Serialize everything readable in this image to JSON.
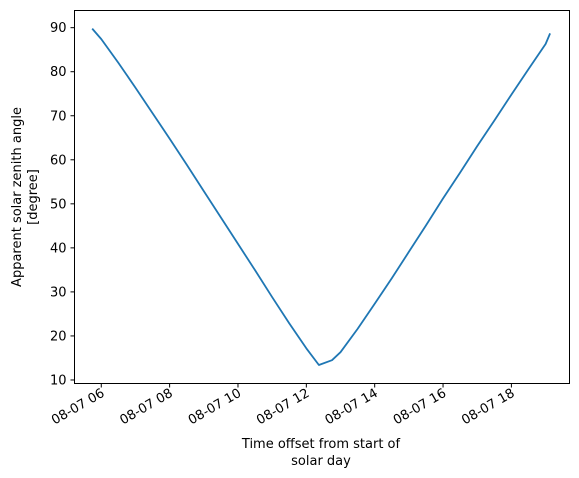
{
  "chart_data": {
    "type": "line",
    "title": "",
    "xlabel": [
      "Time offset from start of",
      "solar day"
    ],
    "ylabel": [
      "Apparent solar zenith angle",
      "[degree]"
    ],
    "x_ticks": [
      "2024-08-07T06:00",
      "2024-08-07T08:00",
      "2024-08-07T10:00",
      "2024-08-07T12:00",
      "2024-08-07T14:00",
      "2024-08-07T16:00",
      "2024-08-07T18:00"
    ],
    "x_tick_labels": [
      "08-07 06",
      "08-07 08",
      "08-07 10",
      "08-07 12",
      "08-07 14",
      "08-07 16",
      "08-07 18"
    ],
    "y_ticks": [
      10,
      20,
      30,
      40,
      50,
      60,
      70,
      80,
      90
    ],
    "y_tick_labels": [
      "10",
      "20",
      "30",
      "40",
      "50",
      "60",
      "70",
      "80",
      "90"
    ],
    "xlim": [
      "2024-08-07T05:13",
      "2024-08-07T19:42"
    ],
    "ylim": [
      9.2,
      93.9
    ],
    "grid": false,
    "line_color": "#1f77b4",
    "series": [
      {
        "x": [
          "2024-08-07T05:44",
          "2024-08-07T06:00",
          "2024-08-07T06:30",
          "2024-08-07T07:00",
          "2024-08-07T07:30",
          "2024-08-07T08:00",
          "2024-08-07T08:30",
          "2024-08-07T09:00",
          "2024-08-07T09:30",
          "2024-08-07T10:00",
          "2024-08-07T10:30",
          "2024-08-07T11:00",
          "2024-08-07T11:30",
          "2024-08-07T12:00",
          "2024-08-07T12:22",
          "2024-08-07T12:45",
          "2024-08-07T13:00",
          "2024-08-07T13:30",
          "2024-08-07T14:00",
          "2024-08-07T14:30",
          "2024-08-07T15:00",
          "2024-08-07T15:30",
          "2024-08-07T16:00",
          "2024-08-07T16:30",
          "2024-08-07T17:00",
          "2024-08-07T17:30",
          "2024-08-07T18:00",
          "2024-08-07T18:30",
          "2024-08-07T19:00",
          "2024-08-07T19:08"
        ],
        "y": [
          89.8,
          87.4,
          82.0,
          76.4,
          70.6,
          64.8,
          58.9,
          52.9,
          46.9,
          40.9,
          34.9,
          28.8,
          22.9,
          17.2,
          13.4,
          14.5,
          16.3,
          21.6,
          27.3,
          33.1,
          39.1,
          45.1,
          51.2,
          57.1,
          63.1,
          68.9,
          74.8,
          80.6,
          86.3,
          88.7
        ]
      }
    ]
  }
}
